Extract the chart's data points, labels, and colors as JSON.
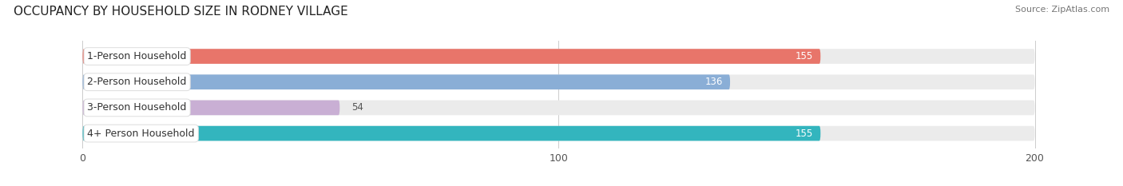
{
  "title": "OCCUPANCY BY HOUSEHOLD SIZE IN RODNEY VILLAGE",
  "source": "Source: ZipAtlas.com",
  "categories": [
    "1-Person Household",
    "2-Person Household",
    "3-Person Household",
    "4+ Person Household"
  ],
  "values": [
    155,
    136,
    54,
    155
  ],
  "bar_colors": [
    "#e8756a",
    "#8aaed6",
    "#c9afd4",
    "#33b5be"
  ],
  "bar_bg_color": "#ebebeb",
  "xlim": [
    -15,
    215
  ],
  "xticks": [
    0,
    100,
    200
  ],
  "figsize": [
    14.06,
    2.33
  ],
  "dpi": 100,
  "title_fontsize": 11,
  "label_fontsize": 9,
  "value_fontsize": 8.5,
  "source_fontsize": 8,
  "bar_height": 0.58
}
